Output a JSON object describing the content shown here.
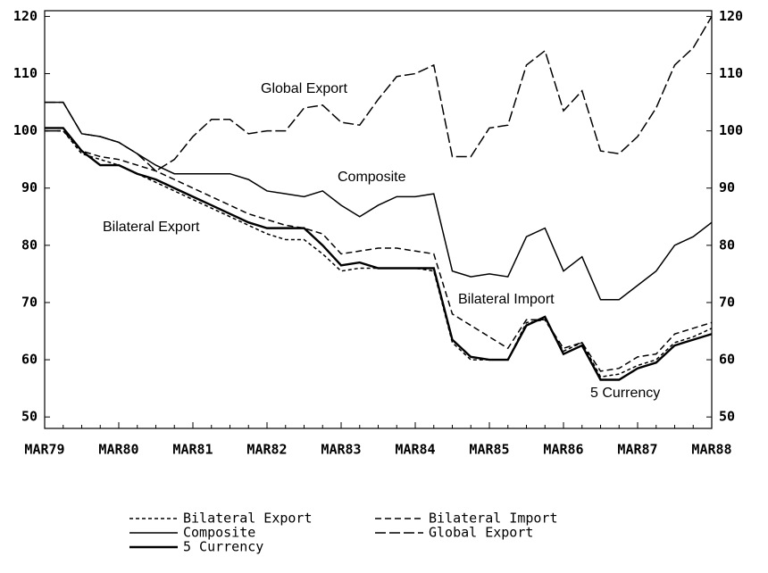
{
  "chart_data": {
    "type": "line",
    "categories": [
      "MAR79",
      null,
      null,
      null,
      "MAR80",
      null,
      null,
      null,
      "MAR81",
      null,
      null,
      null,
      "MAR82",
      null,
      null,
      null,
      "MAR83",
      null,
      null,
      null,
      "MAR84",
      null,
      null,
      null,
      "MAR85",
      null,
      null,
      null,
      "MAR86",
      null,
      null,
      null,
      "MAR87",
      null,
      null,
      null,
      "MAR88"
    ],
    "series": [
      {
        "name": "Bilateral Export",
        "color": "#000000",
        "dash": "4 3",
        "values": [
          100,
          100,
          96,
          95,
          94,
          92.5,
          91,
          89.5,
          88,
          86.5,
          85,
          83.5,
          82,
          81,
          81,
          78.5,
          75.5,
          76,
          76,
          76,
          76,
          75.5,
          63,
          60,
          60,
          60,
          66.5,
          67,
          61.5,
          63,
          57,
          57.5,
          59,
          60,
          63,
          64,
          65.5
        ]
      },
      {
        "name": "Bilateral Import",
        "color": "#000000",
        "dash": "7 4",
        "values": [
          100,
          100,
          96.5,
          95.5,
          95,
          94,
          93,
          91.5,
          90,
          88.5,
          87,
          85.5,
          84.5,
          83.5,
          83,
          82,
          78.5,
          79,
          79.5,
          79.5,
          79,
          78.5,
          68,
          66,
          64,
          62,
          67,
          67,
          62,
          63,
          58,
          58.5,
          60.5,
          61,
          64.5,
          65.5,
          66.5
        ]
      },
      {
        "name": "Composite",
        "color": "#000000",
        "dash": "none",
        "values": [
          105,
          105,
          99.5,
          99,
          98,
          96,
          94,
          92.5,
          92.5,
          92.5,
          92.5,
          91.5,
          89.5,
          89,
          88.5,
          89.5,
          87,
          85,
          87,
          88.5,
          88.5,
          89,
          75.5,
          74.5,
          75,
          74.5,
          81.5,
          83,
          75.5,
          78,
          70.5,
          70.5,
          73,
          75.5,
          80,
          81.5,
          84
        ]
      },
      {
        "name": "Global Export",
        "color": "#000000",
        "dash": "12 4",
        "values": [
          105,
          105,
          99.5,
          99,
          98,
          96,
          93,
          95,
          99,
          102,
          102,
          99.5,
          100,
          100,
          104,
          104.5,
          101.5,
          101,
          105.5,
          109.5,
          110,
          111.5,
          95.5,
          95.5,
          100.5,
          101,
          111.5,
          114,
          103.5,
          107,
          96.5,
          96,
          99,
          104,
          111.5,
          114.5,
          120
        ]
      },
      {
        "name": "5 Currency",
        "color": "#000000",
        "dash": "none",
        "width": 2.4,
        "values": [
          100.5,
          100.5,
          96.5,
          94,
          94,
          92.5,
          91.5,
          90,
          88.5,
          87,
          85.5,
          84,
          83,
          83,
          83,
          80,
          76.5,
          77,
          76,
          76,
          76,
          76,
          63.5,
          60.5,
          60,
          60,
          66,
          67.5,
          61,
          62.5,
          56.5,
          56.5,
          58.5,
          59.5,
          62.5,
          63.5,
          64.5
        ]
      }
    ],
    "annotations": [
      {
        "text": "Global Export",
        "series": 3
      },
      {
        "text": "Composite",
        "series": 2
      },
      {
        "text": "Bilateral Export",
        "series": 0
      },
      {
        "text": "Bilateral Import",
        "series": 1
      },
      {
        "text": "5 Currency",
        "series": 4
      }
    ],
    "ylim": [
      48,
      121
    ],
    "yticks": [
      50,
      60,
      70,
      80,
      90,
      100,
      110,
      120
    ],
    "y2lim": [
      48,
      121
    ],
    "y2ticks": [
      50,
      60,
      70,
      80,
      90,
      100,
      110,
      120
    ],
    "grid": false
  }
}
